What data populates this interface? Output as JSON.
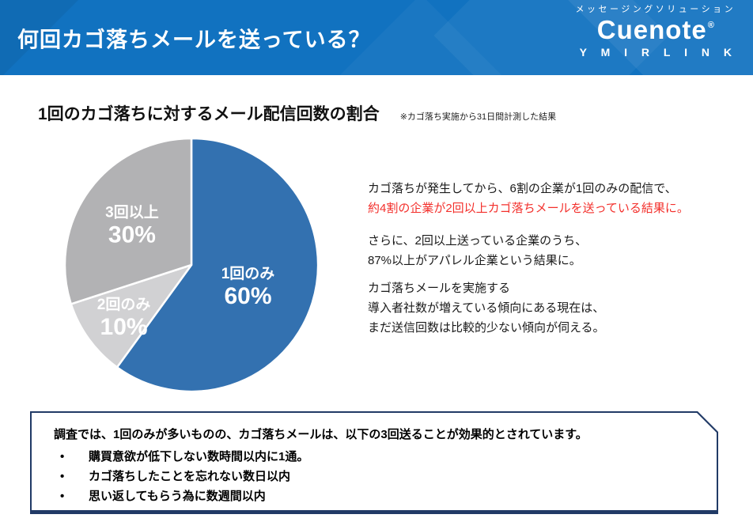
{
  "header": {
    "title": "何回カゴ落ちメールを送っている？",
    "bg_color": "#1172c0",
    "logo": {
      "tagline": "メッセージングソリューション",
      "brand": "Cuenote",
      "registered": "®",
      "company": "Y M I R L I N K"
    }
  },
  "main": {
    "section_title": "1回のカゴ落ちに対するメール配信回数の割合",
    "section_note": "※カゴ落ち実施から31日間計測した結果",
    "commentary": {
      "emphasis_color": "#f3302c",
      "paragraphs": [
        {
          "lines": [
            {
              "text": "カゴ落ちが発生してから、6割の企業が1回のみの配信で、",
              "emphasis": false
            },
            {
              "text": "約4割の企業が2回以上カゴ落ちメールを送っている結果に。",
              "emphasis": true
            }
          ]
        },
        {
          "lines": [
            {
              "text": "さらに、2回以上送っている企業のうち、",
              "emphasis": false
            },
            {
              "text": "87%以上がアパレル企業という結果に。",
              "emphasis": false
            }
          ]
        },
        {
          "lines": [
            {
              "text": "カゴ落ちメールを実施する",
              "emphasis": false
            },
            {
              "text": "導入者社数が増えている傾向にある現在は、",
              "emphasis": false
            },
            {
              "text": "まだ送信回数は比較的少ない傾向が伺える。",
              "emphasis": false
            }
          ]
        }
      ]
    }
  },
  "chart_data": {
    "type": "pie",
    "title": "1回のカゴ落ちに対するメール配信回数の割合",
    "note": "※カゴ落ち実施から31日間計測した結果",
    "start_angle_deg": 0,
    "direction": "clockwise",
    "stroke_color": "#ffffff",
    "label_color": "#ffffff",
    "slices": [
      {
        "label": "1回のみ",
        "value": 60,
        "pct_label": "60%",
        "color": "#3371b0",
        "label_r": 0.47
      },
      {
        "label": "2回のみ",
        "value": 10,
        "pct_label": "10%",
        "color": "#d1d1d3",
        "label_r": 0.66
      },
      {
        "label": "3回以上",
        "value": 30,
        "pct_label": "30%",
        "color": "#b2b2b4",
        "label_r": 0.58
      }
    ]
  },
  "callout": {
    "border_color": "#213a66",
    "title": "調査では、1回のみが多いものの、カゴ落ちメールは、以下の3回送ることが効果的とされています。",
    "bullet_char": "•",
    "bullets": [
      "購買意欲が低下しない数時間以内に1通。",
      "カゴ落ちしたことを忘れない数日以内",
      "思い返してもらう為に数週間以内"
    ]
  }
}
